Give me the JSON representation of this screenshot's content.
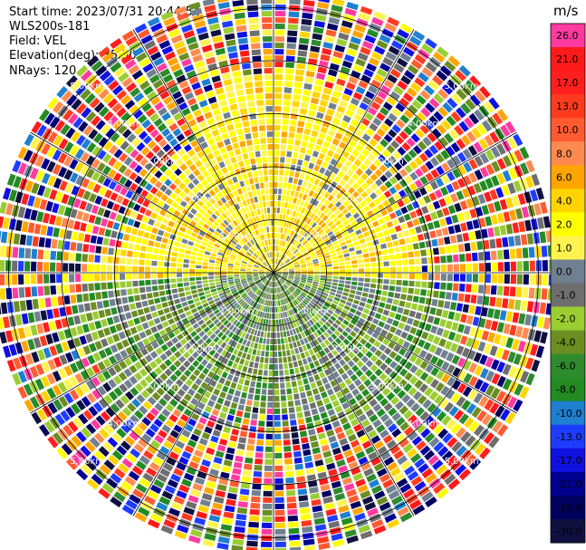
{
  "header": {
    "start_time": "Start time: 2023/07/31 20:44:54",
    "instrument": "WLS200s-181",
    "field": "Field: VEL",
    "elevation": "Elevation(deg): 35.30",
    "nrays": "NRays: 120"
  },
  "colorbar": {
    "unit": "m/s",
    "ticks": [
      "26.0",
      "21.0",
      "17.0",
      "13.0",
      "10.0",
      "8.0",
      "6.0",
      "4.0",
      "2.0",
      "1.0",
      "0.0",
      "-1.0",
      "-2.0",
      "-4.0",
      "-6.0",
      "-8.0",
      "-10.0",
      "-13.0",
      "-17.0",
      "-21.0",
      "-26.0",
      "-30.0"
    ],
    "colors": [
      "#ff3aa0",
      "#ff1a1a",
      "#ff1f1f",
      "#ff3b1f",
      "#ff5a30",
      "#ff8a50",
      "#ffa500",
      "#ffd400",
      "#ffff00",
      "#fff44f",
      "#708090",
      "#6e6e6e",
      "#9acd32",
      "#6b8e23",
      "#2e8b2e",
      "#228b22",
      "#1f7fd0",
      "#1e3cff",
      "#1010e0",
      "#000090",
      "#000060",
      "#101040"
    ]
  },
  "chart_data": {
    "type": "ppi",
    "field": "VEL",
    "units": "m/s",
    "nrays": 120,
    "range_rings_km": [
      1,
      2,
      3,
      4,
      5
    ],
    "range_ring_labels": [
      "1.00km",
      "2.00km",
      "3.00km",
      "4.00km",
      "5.00km"
    ],
    "max_range_km": 5.3,
    "spoke_interval_deg": 30,
    "pattern": {
      "inner_north_half": "positive velocities (yellow, about 1 to 4 m/s)",
      "inner_south_half": "near-zero to negative velocities (gray / olive / green, about 0 to -6 m/s)",
      "outer_ring": "noisy multicolored values beyond about 3 km"
    }
  }
}
